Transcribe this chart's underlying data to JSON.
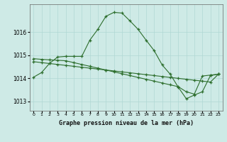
{
  "title": "Graphe pression niveau de la mer (hPa)",
  "background_color": "#ceeae6",
  "grid_color": "#b0d8d4",
  "line_color": "#2d6e2d",
  "xlim": [
    -0.5,
    23.5
  ],
  "ylim": [
    1012.6,
    1017.2
  ],
  "yticks": [
    1013,
    1014,
    1015,
    1016
  ],
  "xticks": [
    0,
    1,
    2,
    3,
    4,
    5,
    6,
    7,
    8,
    9,
    10,
    11,
    12,
    13,
    14,
    15,
    16,
    17,
    18,
    19,
    20,
    21,
    22,
    23
  ],
  "line1": [
    1014.05,
    1014.25,
    1014.65,
    1014.92,
    1014.95,
    1014.95,
    1014.95,
    1015.65,
    1016.12,
    1016.68,
    1016.85,
    1016.82,
    1016.48,
    1016.12,
    1015.65,
    1015.2,
    1014.58,
    1014.18,
    1013.62,
    1013.12,
    1013.28,
    1013.42,
    1014.12,
    1014.18
  ],
  "line2": [
    1014.72,
    1014.68,
    1014.64,
    1014.6,
    1014.56,
    1014.52,
    1014.48,
    1014.44,
    1014.4,
    1014.36,
    1014.32,
    1014.28,
    1014.24,
    1014.2,
    1014.16,
    1014.12,
    1014.08,
    1014.04,
    1014.0,
    1013.96,
    1013.92,
    1013.88,
    1013.84,
    1014.18
  ],
  "line3": [
    1014.85,
    1014.82,
    1014.8,
    1014.78,
    1014.76,
    1014.68,
    1014.6,
    1014.52,
    1014.44,
    1014.36,
    1014.28,
    1014.2,
    1014.12,
    1014.04,
    1013.96,
    1013.88,
    1013.8,
    1013.72,
    1013.64,
    1013.42,
    1013.32,
    1014.1,
    1014.14,
    1014.18
  ]
}
